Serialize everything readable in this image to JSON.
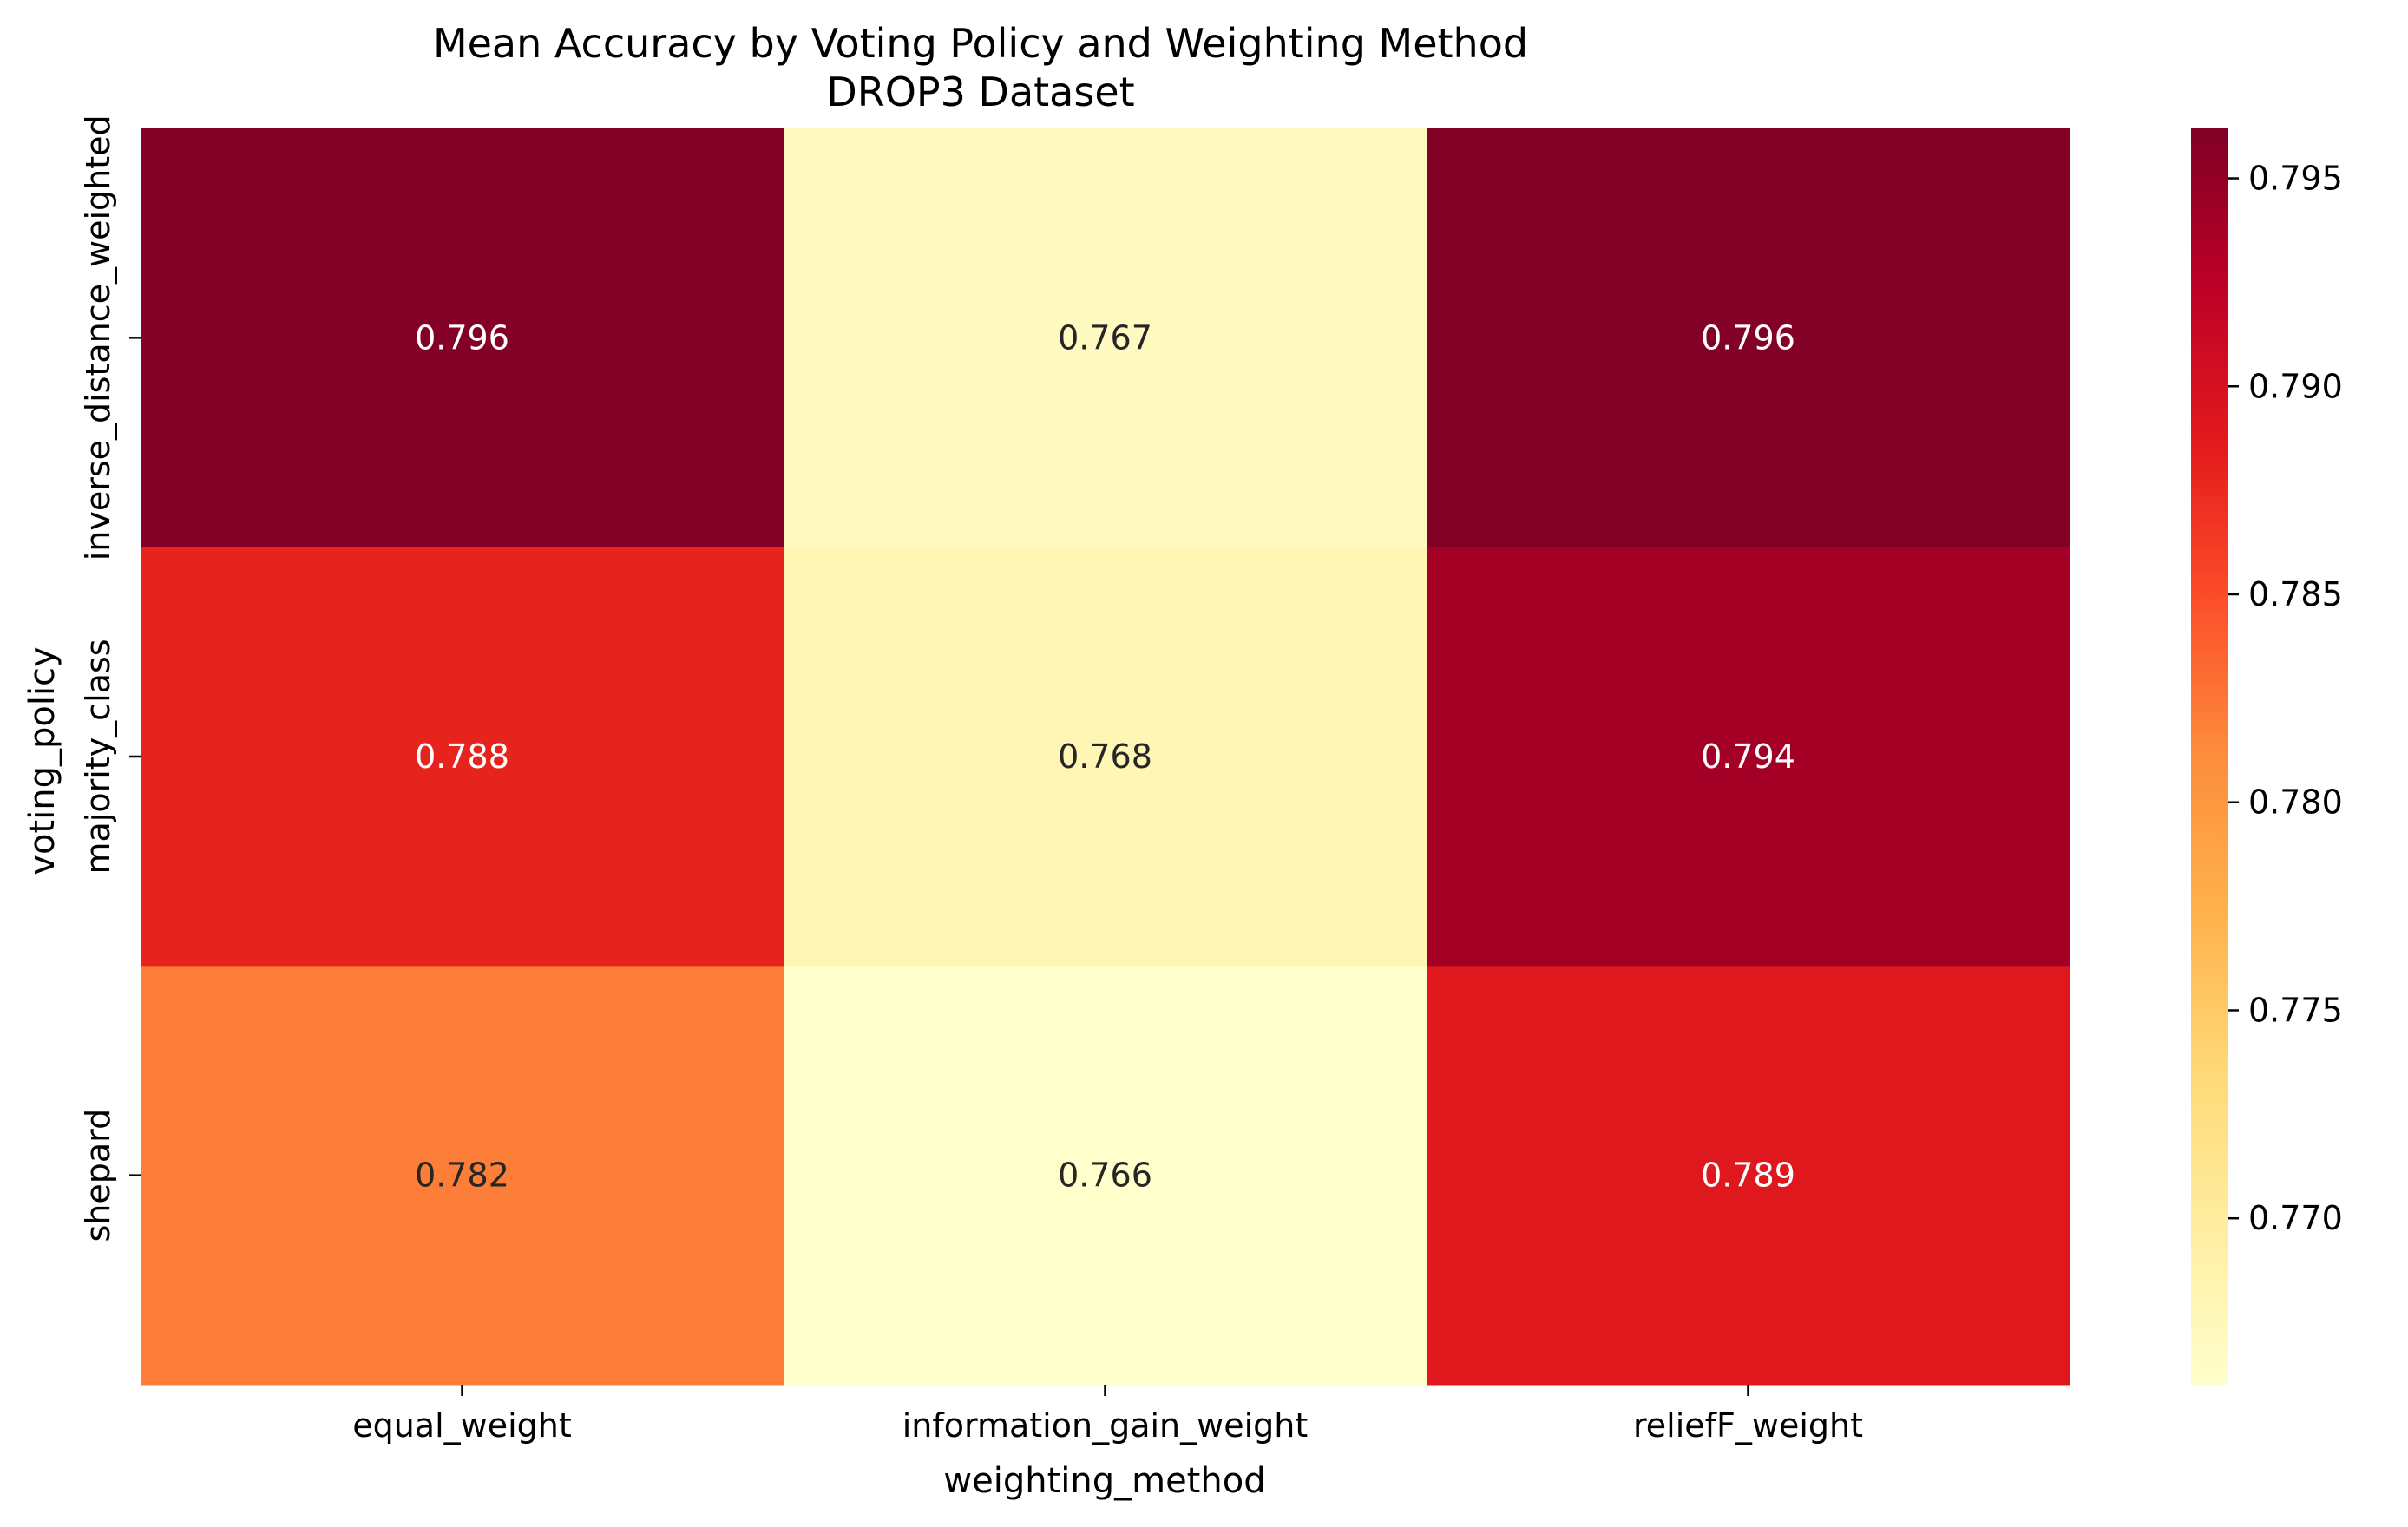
{
  "chart_data": {
    "type": "heatmap",
    "title": "Mean Accuracy by Voting Policy and Weighting Method",
    "subtitle": "DROP3 Dataset",
    "xlabel": "weighting_method",
    "ylabel": "voting_policy",
    "x_categories": [
      "equal_weight",
      "information_gain_weight",
      "reliefF_weight"
    ],
    "y_categories": [
      "inverse_distance_weighted",
      "majority_class",
      "shepard"
    ],
    "values": [
      [
        0.796,
        0.767,
        0.796
      ],
      [
        0.788,
        0.768,
        0.794
      ],
      [
        0.782,
        0.766,
        0.789
      ]
    ],
    "value_labels": [
      [
        "0.796",
        "0.767",
        "0.796"
      ],
      [
        "0.788",
        "0.768",
        "0.794"
      ],
      [
        "0.782",
        "0.766",
        "0.789"
      ]
    ],
    "colormap": "YlOrRd",
    "colorbar": {
      "range": [
        0.766,
        0.7962
      ],
      "ticks": [
        0.77,
        0.775,
        0.78,
        0.785,
        0.79,
        0.795
      ],
      "tick_labels": [
        "0.770",
        "0.775",
        "0.780",
        "0.785",
        "0.790",
        "0.795"
      ]
    },
    "grid": false,
    "legend": "colorbar-right"
  }
}
